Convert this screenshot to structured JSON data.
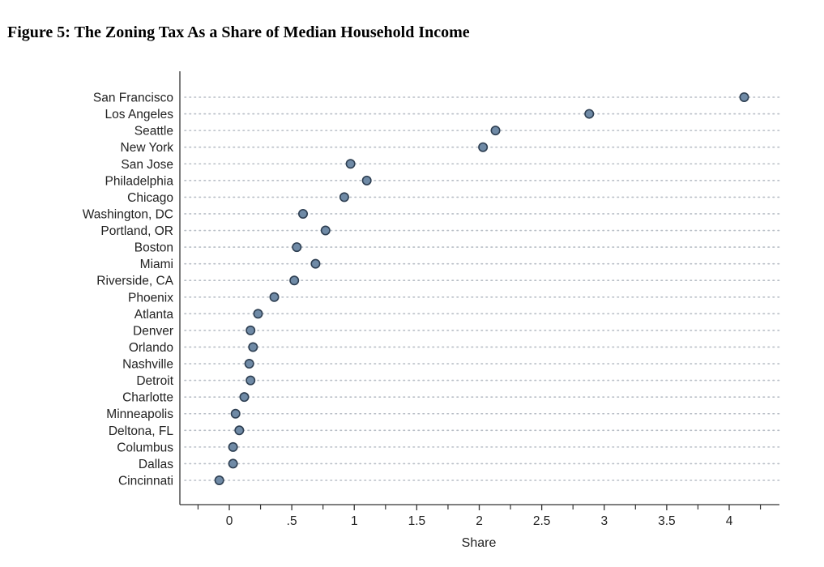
{
  "chart_data": {
    "type": "scatter",
    "title": "Figure 5:  The Zoning Tax As a Share of Median Household Income",
    "xlabel": "Share",
    "ylabel": "",
    "xlim": [
      -0.4,
      4.39
    ],
    "xticks": [
      0,
      0.5,
      1,
      1.5,
      2,
      2.5,
      3,
      3.5,
      4
    ],
    "xtick_labels": [
      "0",
      ".5",
      "1",
      "1.5",
      "2",
      "2.5",
      "3",
      "3.5",
      "4"
    ],
    "minor_xticks": [
      -0.25,
      0.25,
      0.75,
      1.25,
      1.75,
      2.25,
      2.75,
      3.25,
      3.75,
      4.25
    ],
    "grid": "dotted horizontal per category",
    "marker_color": "#6f8aa6",
    "marker_edge": "#2e3f52",
    "categories": [
      "San Francisco",
      "Los Angeles",
      "Seattle",
      "New York",
      "San Jose",
      "Philadelphia",
      "Chicago",
      "Washington, DC",
      "Portland, OR",
      "Boston",
      "Miami",
      "Riverside, CA",
      "Phoenix",
      "Atlanta",
      "Denver",
      "Orlando",
      "Nashville",
      "Detroit",
      "Charlotte",
      "Minneapolis",
      "Deltona, FL",
      "Columbus",
      "Dallas",
      "Cincinnati"
    ],
    "values": [
      4.12,
      2.88,
      2.13,
      2.03,
      0.97,
      1.1,
      0.92,
      0.59,
      0.77,
      0.54,
      0.69,
      0.52,
      0.36,
      0.23,
      0.17,
      0.19,
      0.16,
      0.17,
      0.12,
      0.05,
      0.08,
      0.03,
      0.03,
      -0.08
    ]
  }
}
